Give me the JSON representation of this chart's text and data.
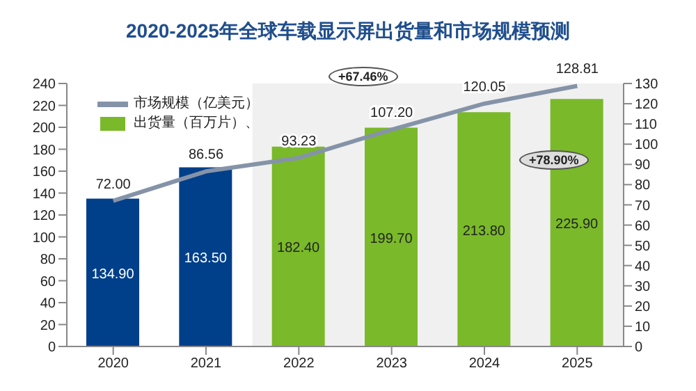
{
  "chart_data": {
    "type": "bar",
    "title": "2020-2025年全球车载显示屏出货量和市场规模预测",
    "categories": [
      "2020",
      "2021",
      "2022",
      "2023",
      "2024",
      "2025"
    ],
    "series": [
      {
        "name": "出货量（百万片）、",
        "color": "#7ab929",
        "colors": [
          "#003f8a",
          "#003f8a",
          "#7ab929",
          "#7ab929",
          "#7ab929",
          "#7ab929"
        ],
        "values": [
          134.9,
          163.5,
          182.4,
          199.7,
          213.8,
          225.9
        ],
        "value_labels": [
          "134.90",
          "163.50",
          "182.40",
          "199.70",
          "213.80",
          "225.90"
        ]
      },
      {
        "name": "市场规模（亿美元）",
        "type": "line",
        "axis": "y2",
        "color": "#8593a8",
        "values": [
          72.0,
          86.56,
          93.23,
          107.2,
          120.05,
          128.81
        ],
        "value_labels": [
          "72.00",
          "86.56",
          "93.23",
          "107.20",
          "120.05",
          "128.81"
        ]
      }
    ],
    "ylim": [
      0,
      240
    ],
    "yticks": [
      0,
      20,
      40,
      60,
      80,
      100,
      120,
      140,
      160,
      180,
      200,
      220,
      240
    ],
    "y2lim": [
      0,
      130
    ],
    "y2ticks": [
      0,
      10,
      20,
      30,
      40,
      50,
      60,
      70,
      80,
      90,
      100,
      110,
      120,
      130
    ],
    "bands": [
      {
        "axis": "x",
        "from": "2022",
        "to": "2025",
        "color": "#f0f0f0"
      }
    ],
    "annotations": [
      "+67.46%",
      "+78.90%"
    ],
    "legend": "top left",
    "marker": "none",
    "line_style": "solid"
  }
}
